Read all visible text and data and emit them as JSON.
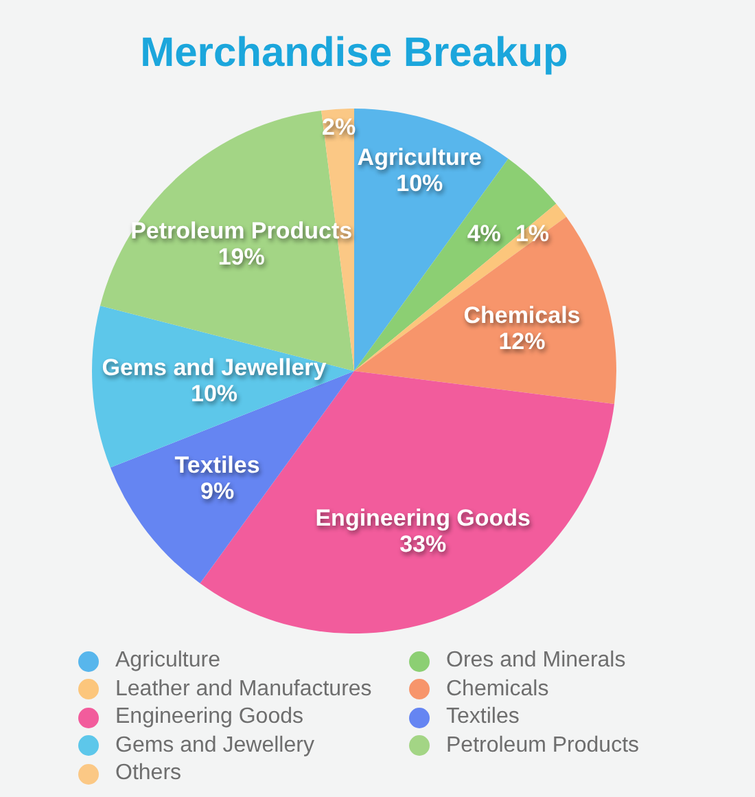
{
  "chart_data": {
    "type": "pie",
    "title": "Merchandise Breakup",
    "categories": [
      "Agriculture",
      "Ores and Minerals",
      "Leather and Manufactures",
      "Chemicals",
      "Engineering Goods",
      "Textiles",
      "Gems and Jewellery",
      "Petroleum Products",
      "Others"
    ],
    "values": [
      10,
      4,
      1,
      12,
      33,
      9,
      10,
      19,
      2
    ],
    "colors": [
      "#58b6ec",
      "#8ccf73",
      "#fcc67c",
      "#f7956b",
      "#f25c9c",
      "#6585f2",
      "#5dc7ea",
      "#a3d585",
      "#fbc885"
    ],
    "value_labels": [
      "Agriculture\n10%",
      "4%",
      "1%",
      "Chemicals\n12%",
      "Engineering Goods\n33%",
      "Textiles\n9%",
      "Gems and Jewellery\n10%",
      "Petroleum Products\n19%",
      "2%"
    ],
    "legend": "bottom"
  }
}
